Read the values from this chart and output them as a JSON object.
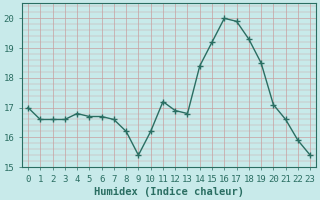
{
  "xlabel": "Humidex (Indice chaleur)",
  "x": [
    0,
    1,
    2,
    3,
    4,
    5,
    6,
    7,
    8,
    9,
    10,
    11,
    12,
    13,
    14,
    15,
    16,
    17,
    18,
    19,
    20,
    21,
    22,
    23
  ],
  "y": [
    17.0,
    16.6,
    16.6,
    16.6,
    16.8,
    16.7,
    16.7,
    16.6,
    16.2,
    15.4,
    16.2,
    17.2,
    16.9,
    16.8,
    18.4,
    19.2,
    20.0,
    19.9,
    19.3,
    18.5,
    17.1,
    16.6,
    15.9,
    15.4
  ],
  "line_color": "#2a6e62",
  "marker": "+",
  "marker_size": 4,
  "bg_color": "#c8eaea",
  "grid_color_v": "#c8a0a0",
  "grid_color_h": "#c8a0a0",
  "axis_color": "#2a6e62",
  "ylim": [
    15.0,
    20.5
  ],
  "yticks": [
    15,
    16,
    17,
    18,
    19,
    20
  ],
  "xticks": [
    0,
    1,
    2,
    3,
    4,
    5,
    6,
    7,
    8,
    9,
    10,
    11,
    12,
    13,
    14,
    15,
    16,
    17,
    18,
    19,
    20,
    21,
    22,
    23
  ],
  "tick_fontsize": 6.5,
  "xlabel_fontsize": 7.5,
  "linewidth": 1.0,
  "marker_color": "#2a6e62"
}
